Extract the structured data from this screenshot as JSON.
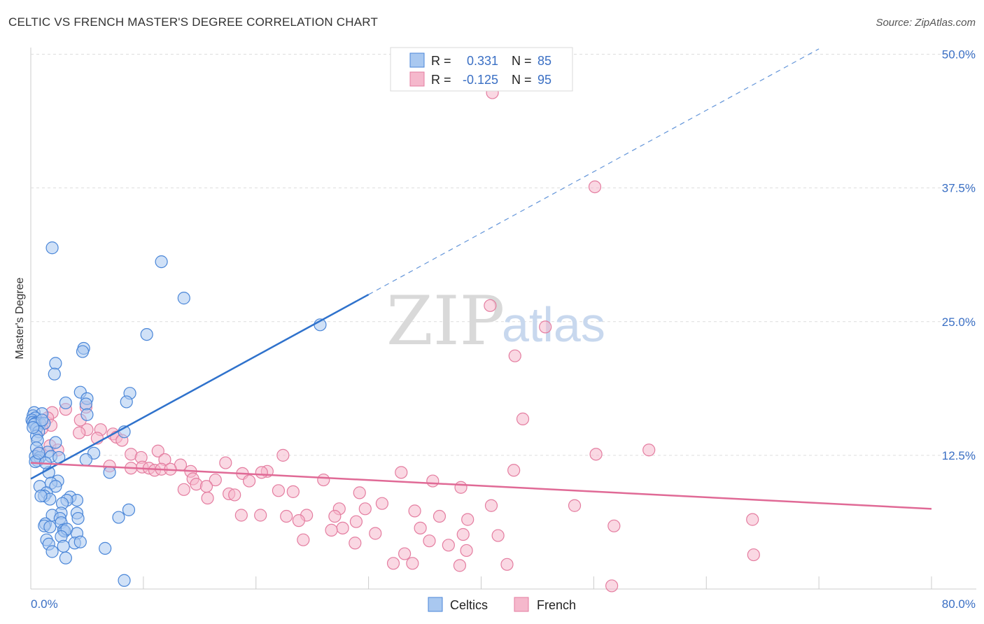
{
  "title": "CELTIC VS FRENCH MASTER'S DEGREE CORRELATION CHART",
  "source": "Source: ZipAtlas.com",
  "watermark": {
    "left": "ZIP",
    "right": "atlas"
  },
  "colors": {
    "celtics_fill": "#a9c8f0",
    "celtics_stroke": "#4a86d8",
    "celtics_line": "#2f72cc",
    "french_fill": "#f5b8cc",
    "french_stroke": "#e47da0",
    "french_line": "#e06a96",
    "tick_label": "#3a6fc4",
    "grid": "#dddddd"
  },
  "legend_top": {
    "rows": [
      {
        "r_label": "R =",
        "r_value": "0.331",
        "n_label": "N =",
        "n_value": "85"
      },
      {
        "r_label": "R =",
        "r_value": "-0.125",
        "n_label": "N =",
        "n_value": "95"
      }
    ]
  },
  "legend_bottom": [
    "Celtics",
    "French"
  ],
  "chart_data": {
    "type": "scatter",
    "title": "CELTIC VS FRENCH MASTER'S DEGREE CORRELATION CHART",
    "xlabel": "",
    "ylabel": "Master's Degree",
    "x_tick_labels": [
      "0.0%",
      "80.0%"
    ],
    "y_tick_labels": [
      "12.5%",
      "25.0%",
      "37.5%",
      "50.0%"
    ],
    "y_ticks": [
      12.5,
      25.0,
      37.5,
      50.0
    ],
    "xlim": [
      0,
      80
    ],
    "ylim": [
      0,
      51
    ],
    "grid": true,
    "legend_position": "top-center",
    "series": [
      {
        "name": "Celtics",
        "r": 0.331,
        "n": 85,
        "trend": {
          "x_start": 0,
          "y_start": 10.3,
          "x_solid_end": 30,
          "x_dashed_end": 70,
          "y_dashed_end": 50.5
        },
        "points": [
          [
            1.9,
            31.9
          ],
          [
            11.6,
            30.6
          ],
          [
            13.6,
            27.2
          ],
          [
            25.7,
            24.7
          ],
          [
            10.3,
            23.8
          ],
          [
            4.7,
            22.5
          ],
          [
            4.6,
            22.2
          ],
          [
            2.2,
            21.1
          ],
          [
            2.1,
            20.1
          ],
          [
            4.4,
            18.4
          ],
          [
            8.8,
            18.3
          ],
          [
            5.0,
            17.8
          ],
          [
            8.5,
            17.5
          ],
          [
            3.1,
            17.4
          ],
          [
            4.9,
            17.3
          ],
          [
            0.3,
            16.5
          ],
          [
            1.0,
            16.4
          ],
          [
            0.2,
            16.2
          ],
          [
            0.4,
            16.0
          ],
          [
            0.1,
            15.8
          ],
          [
            0.2,
            15.6
          ],
          [
            0.8,
            15.5
          ],
          [
            0.4,
            15.5
          ],
          [
            1.2,
            15.5
          ],
          [
            0.3,
            15.4
          ],
          [
            5.0,
            16.3
          ],
          [
            0.5,
            15.0
          ],
          [
            0.7,
            14.7
          ],
          [
            8.3,
            14.7
          ],
          [
            0.5,
            14.3
          ],
          [
            0.6,
            13.9
          ],
          [
            2.2,
            13.7
          ],
          [
            0.5,
            13.2
          ],
          [
            1.5,
            12.8
          ],
          [
            5.6,
            12.7
          ],
          [
            0.4,
            12.4
          ],
          [
            0.8,
            12.3
          ],
          [
            1.8,
            12.4
          ],
          [
            0.6,
            12.0
          ],
          [
            0.4,
            11.9
          ],
          [
            4.9,
            12.1
          ],
          [
            1.6,
            10.9
          ],
          [
            7.0,
            10.9
          ],
          [
            2.4,
            10.1
          ],
          [
            1.8,
            9.9
          ],
          [
            2.2,
            9.6
          ],
          [
            0.8,
            9.6
          ],
          [
            1.4,
            9.0
          ],
          [
            1.2,
            8.7
          ],
          [
            1.7,
            8.4
          ],
          [
            3.5,
            8.6
          ],
          [
            4.1,
            8.3
          ],
          [
            3.2,
            8.3
          ],
          [
            2.8,
            8.0
          ],
          [
            0.9,
            8.7
          ],
          [
            8.7,
            7.4
          ],
          [
            2.7,
            7.1
          ],
          [
            4.1,
            7.1
          ],
          [
            1.9,
            6.9
          ],
          [
            4.2,
            6.6
          ],
          [
            7.8,
            6.7
          ],
          [
            2.6,
            6.6
          ],
          [
            2.7,
            6.2
          ],
          [
            1.3,
            6.1
          ],
          [
            1.2,
            5.9
          ],
          [
            1.7,
            5.8
          ],
          [
            2.9,
            5.5
          ],
          [
            3.0,
            5.4
          ],
          [
            3.2,
            5.6
          ],
          [
            4.1,
            5.2
          ],
          [
            2.7,
            4.9
          ],
          [
            1.4,
            4.6
          ],
          [
            3.9,
            4.3
          ],
          [
            4.4,
            4.4
          ],
          [
            1.6,
            4.2
          ],
          [
            6.6,
            3.8
          ],
          [
            2.9,
            4.0
          ],
          [
            1.9,
            3.5
          ],
          [
            3.1,
            2.9
          ],
          [
            8.3,
            0.8
          ],
          [
            0.2,
            15.1
          ],
          [
            1.0,
            15.8
          ],
          [
            0.7,
            12.7
          ],
          [
            2.5,
            12.3
          ],
          [
            1.3,
            11.8
          ]
        ]
      },
      {
        "name": "French",
        "r": -0.125,
        "n": 95,
        "trend": {
          "x_start": 0,
          "y_start": 11.8,
          "x_end": 80,
          "y_end": 7.5
        },
        "points": [
          [
            41.0,
            46.4
          ],
          [
            50.1,
            37.6
          ],
          [
            40.8,
            26.5
          ],
          [
            45.7,
            24.5
          ],
          [
            43.0,
            21.8
          ],
          [
            43.7,
            15.9
          ],
          [
            54.9,
            13.0
          ],
          [
            50.2,
            12.6
          ],
          [
            42.9,
            11.1
          ],
          [
            4.9,
            17.0
          ],
          [
            3.1,
            16.8
          ],
          [
            1.9,
            16.5
          ],
          [
            1.5,
            16.0
          ],
          [
            4.4,
            15.8
          ],
          [
            1.8,
            15.3
          ],
          [
            1.0,
            15.0
          ],
          [
            6.2,
            14.9
          ],
          [
            5.0,
            14.9
          ],
          [
            4.3,
            14.6
          ],
          [
            7.3,
            14.5
          ],
          [
            7.6,
            14.2
          ],
          [
            5.9,
            14.1
          ],
          [
            8.1,
            13.9
          ],
          [
            1.7,
            13.4
          ],
          [
            2.4,
            13.0
          ],
          [
            0.8,
            12.7
          ],
          [
            11.3,
            12.9
          ],
          [
            8.9,
            12.6
          ],
          [
            22.4,
            12.5
          ],
          [
            9.8,
            12.3
          ],
          [
            11.9,
            12.1
          ],
          [
            17.3,
            11.8
          ],
          [
            13.3,
            11.6
          ],
          [
            7.0,
            11.5
          ],
          [
            8.9,
            11.3
          ],
          [
            9.9,
            11.4
          ],
          [
            10.5,
            11.3
          ],
          [
            11.0,
            11.1
          ],
          [
            11.6,
            11.2
          ],
          [
            12.4,
            11.2
          ],
          [
            14.2,
            11.0
          ],
          [
            21.0,
            11.0
          ],
          [
            20.5,
            10.9
          ],
          [
            18.8,
            10.8
          ],
          [
            32.9,
            10.9
          ],
          [
            14.4,
            10.3
          ],
          [
            16.4,
            10.2
          ],
          [
            19.4,
            10.1
          ],
          [
            26.0,
            10.2
          ],
          [
            35.7,
            10.1
          ],
          [
            14.7,
            9.8
          ],
          [
            15.6,
            9.6
          ],
          [
            38.2,
            9.5
          ],
          [
            13.6,
            9.3
          ],
          [
            22.0,
            9.2
          ],
          [
            23.3,
            9.1
          ],
          [
            29.2,
            9.0
          ],
          [
            17.6,
            8.9
          ],
          [
            18.1,
            8.8
          ],
          [
            15.7,
            8.5
          ],
          [
            31.2,
            8.0
          ],
          [
            40.9,
            7.8
          ],
          [
            48.3,
            7.8
          ],
          [
            29.7,
            7.5
          ],
          [
            27.4,
            7.5
          ],
          [
            34.1,
            7.3
          ],
          [
            18.7,
            6.9
          ],
          [
            20.4,
            6.9
          ],
          [
            22.7,
            6.8
          ],
          [
            24.5,
            6.9
          ],
          [
            27.0,
            6.8
          ],
          [
            36.3,
            6.8
          ],
          [
            38.8,
            6.5
          ],
          [
            23.8,
            6.4
          ],
          [
            28.9,
            6.3
          ],
          [
            64.1,
            6.5
          ],
          [
            51.8,
            5.9
          ],
          [
            27.7,
            5.7
          ],
          [
            34.6,
            5.7
          ],
          [
            26.7,
            5.5
          ],
          [
            30.6,
            5.2
          ],
          [
            38.4,
            5.1
          ],
          [
            41.5,
            5.0
          ],
          [
            24.2,
            4.6
          ],
          [
            35.4,
            4.5
          ],
          [
            28.8,
            4.3
          ],
          [
            37.1,
            4.1
          ],
          [
            38.7,
            3.6
          ],
          [
            33.2,
            3.3
          ],
          [
            64.2,
            3.2
          ],
          [
            32.2,
            2.4
          ],
          [
            33.9,
            2.4
          ],
          [
            38.1,
            2.2
          ],
          [
            42.3,
            2.3
          ],
          [
            51.6,
            0.3
          ]
        ]
      }
    ]
  }
}
